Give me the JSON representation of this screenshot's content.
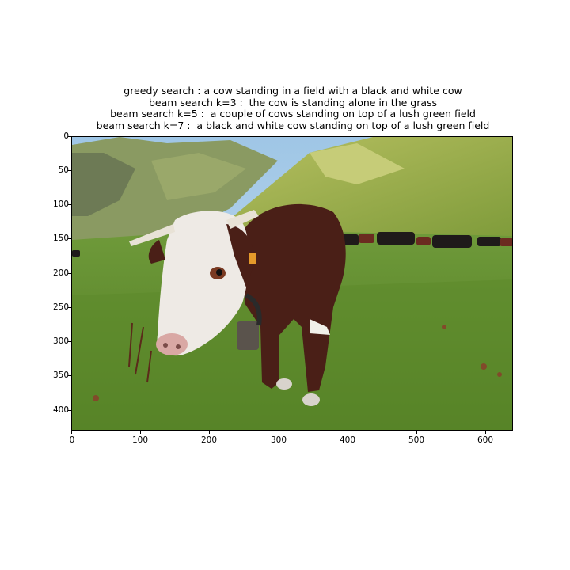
{
  "captions": [
    "greedy search : a cow standing in a field with a black and white cow",
    "beam search k=3 :  the cow is standing alone in the grass",
    "beam search k=5 :  a couple of cows standing on top of a lush green field",
    "beam search k=7 :  a black and white cow standing on top of a lush green field"
  ],
  "axis": {
    "y_ticks": [
      "0",
      "50",
      "100",
      "150",
      "200",
      "250",
      "300",
      "350",
      "400"
    ],
    "x_ticks": [
      "0",
      "100",
      "200",
      "300",
      "400",
      "500",
      "600"
    ]
  },
  "image": {
    "subject": "cow-in-alpine-meadow"
  }
}
